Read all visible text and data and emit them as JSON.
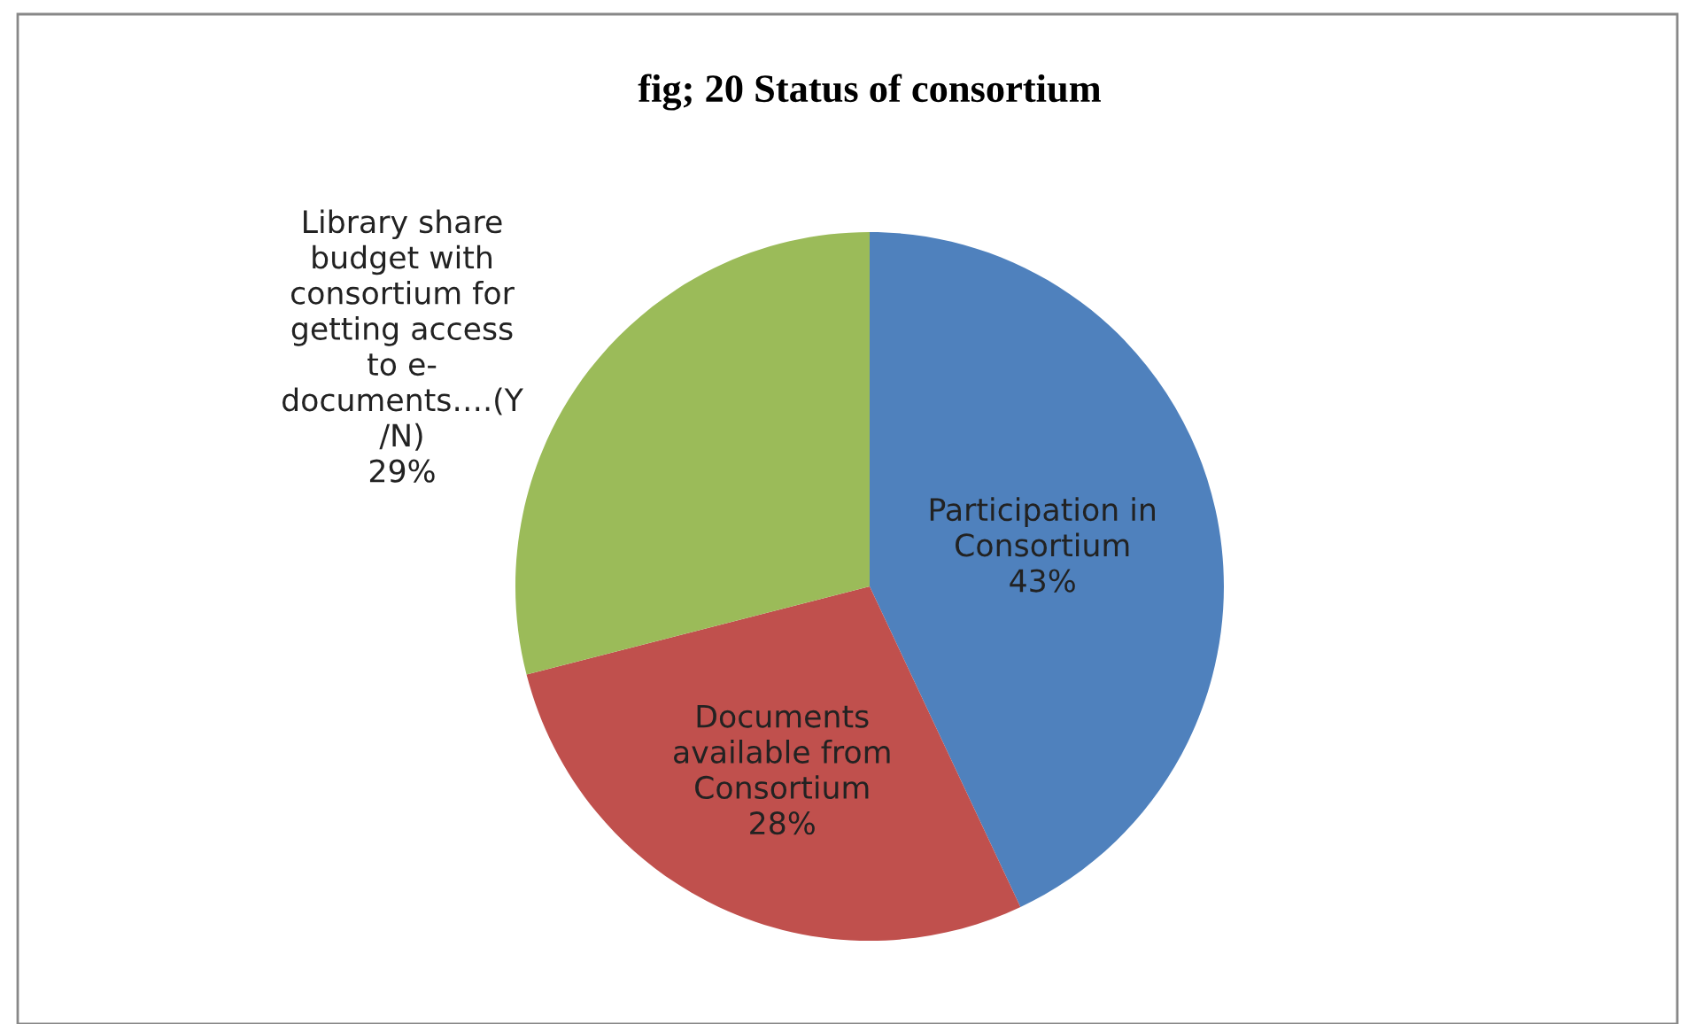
{
  "chart_data": {
    "type": "pie",
    "title": "fig; 20 Status of consortium",
    "categories": [
      "Participation in\nConsortium",
      "Documents\navailable from\nConsortium",
      "Library share\nbudget with\nconsortium for\ngetting access\nto e-\ndocuments….(Y\n/N)"
    ],
    "values": [
      43,
      28,
      29
    ],
    "colors": [
      "#4f81bd",
      "#c0504d",
      "#9bbb59"
    ],
    "value_labels": [
      "43%",
      "28%",
      "29%"
    ]
  }
}
